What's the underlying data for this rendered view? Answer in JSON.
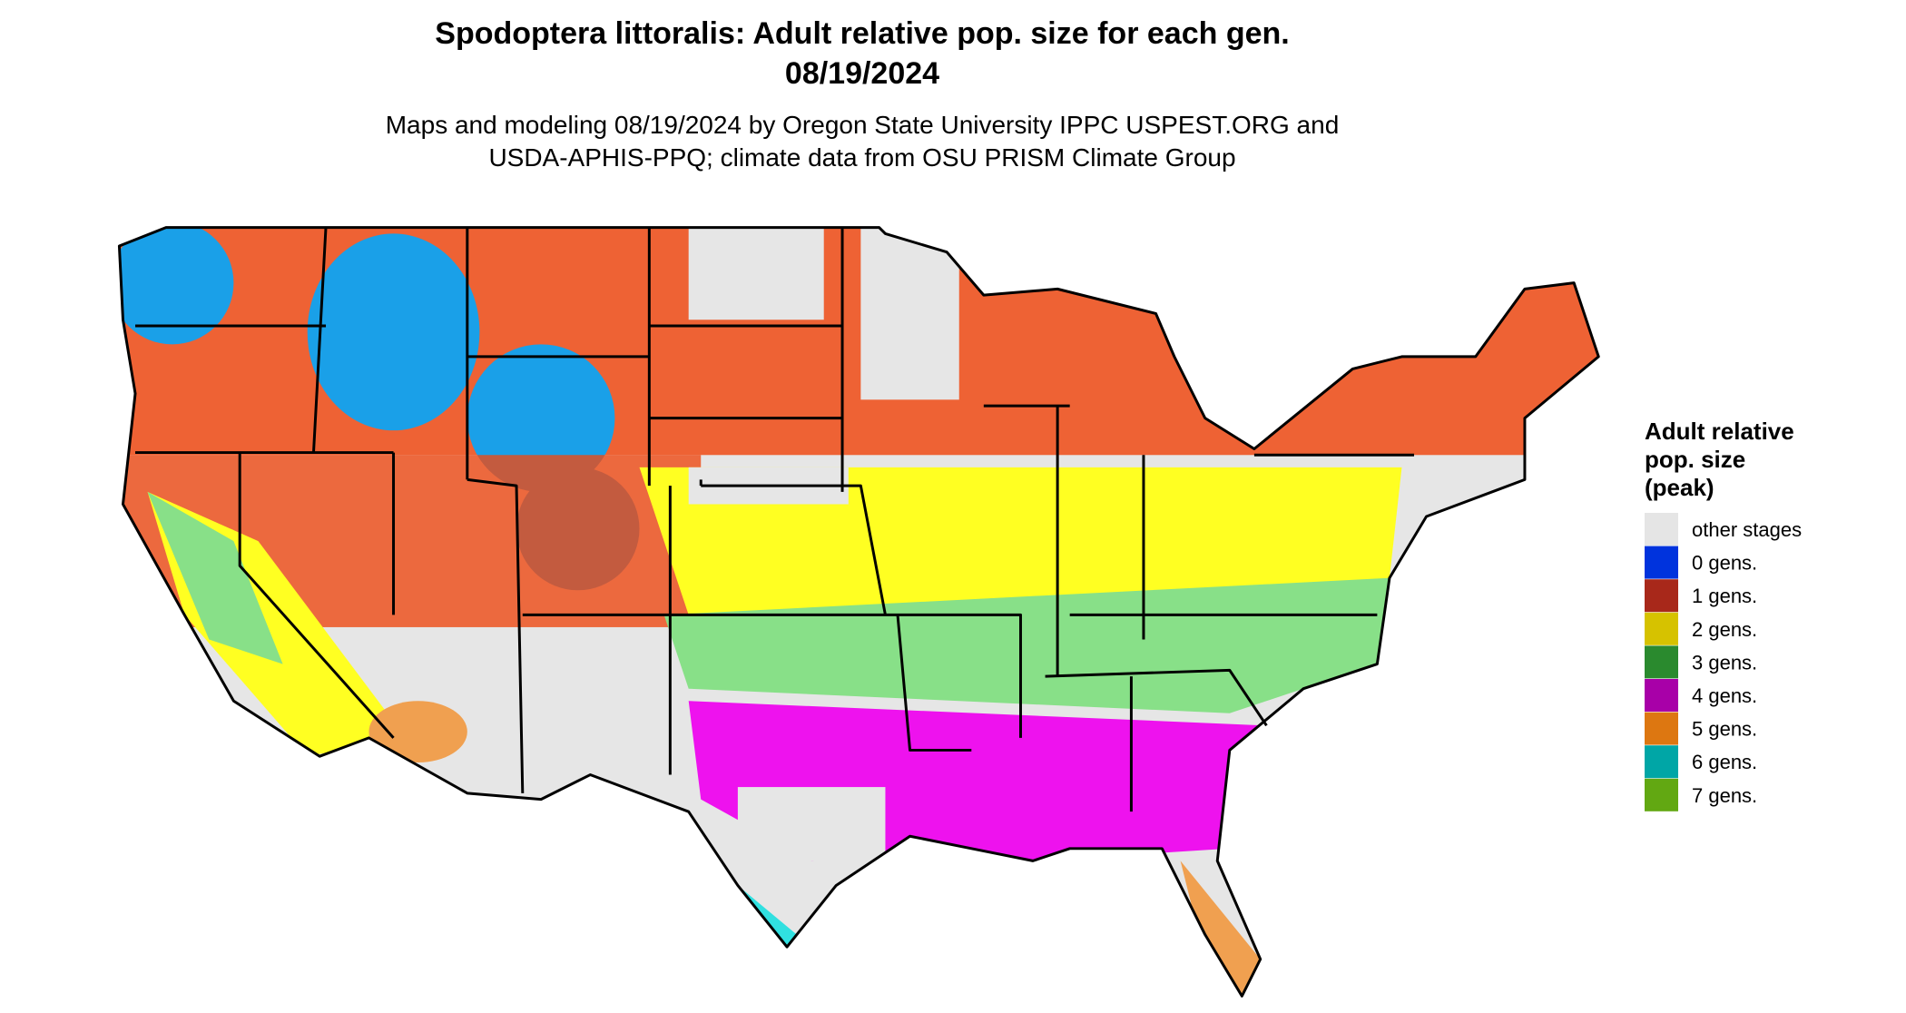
{
  "header": {
    "title": "Spodoptera littoralis: Adult relative pop. size for each gen.",
    "date": "08/19/2024",
    "subtitle_lines": [
      "Maps and modeling 08/19/2024 by Oregon State University IPPC USPEST.ORG and",
      "USDA-APHIS-PPQ; climate data from OSU PRISM Climate Group"
    ]
  },
  "legend": {
    "title_lines": [
      "Adult relative",
      "pop. size",
      "(peak)"
    ],
    "items": [
      {
        "label": "other stages",
        "color": "#e5e5e5"
      },
      {
        "label": "0 gens.",
        "color": "#0033dd"
      },
      {
        "label": "1 gens.",
        "color": "#a8281a"
      },
      {
        "label": "2 gens.",
        "color": "#d6c200"
      },
      {
        "label": "3 gens.",
        "color": "#2a8a2e"
      },
      {
        "label": "4 gens.",
        "color": "#a800a8"
      },
      {
        "label": "5 gens.",
        "color": "#dd7711"
      },
      {
        "label": "6 gens.",
        "color": "#00a6a6"
      },
      {
        "label": "7 gens.",
        "color": "#62a812"
      }
    ]
  }
}
